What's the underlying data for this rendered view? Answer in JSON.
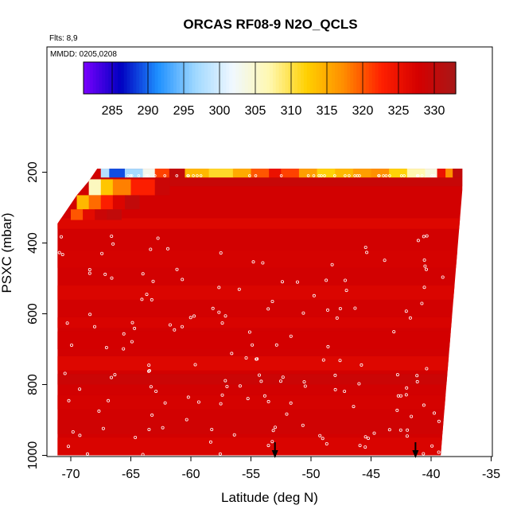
{
  "chart_data": {
    "type": "heatmap",
    "title": "ORCAS RF08-9 N2O_QCLS",
    "flights_note": "Flts: 8,9",
    "date_note": "MMDD: 0205,0208",
    "xlabel": "Latitude (deg N)",
    "ylabel": "PSXC (mbar)",
    "xlim": [
      -72.5,
      -35
    ],
    "ylim": [
      1010,
      80
    ],
    "y_reversed": true,
    "grid": false,
    "x_ticks": [
      -70,
      -65,
      -60,
      -55,
      -50,
      -45,
      -40,
      -35
    ],
    "y_ticks": [
      200,
      400,
      600,
      800,
      1000
    ],
    "colorbar": {
      "placement": "top-inside",
      "range": [
        281,
        333
      ],
      "ticks": [
        285,
        290,
        295,
        300,
        305,
        310,
        315,
        320,
        325,
        330
      ],
      "colors": [
        "#7a00ff",
        "#0000c0",
        "#1e90ff",
        "#9fd8ff",
        "#f0f8ff",
        "#fff8b0",
        "#ffd000",
        "#ff8c00",
        "#ff2000",
        "#d40000",
        "#a81818"
      ]
    },
    "values_summary": {
      "background_level_ppb": 328,
      "layer_level_ppb": 326,
      "stratospheric_band": {
        "pressure_range_mbar": [
          190,
          215
        ],
        "lat": [
          -67.5,
          -66.8,
          -65.5,
          -64.0,
          -63.0,
          -61.8,
          -60.5,
          -58.5,
          -56.5,
          -55.0,
          -53.5,
          -52.5,
          -51.0,
          -49.5,
          -48.0,
          -46.5,
          -45.0,
          -43.5,
          -42.0,
          -40.5,
          -39.5,
          -38.8,
          -38.2
        ],
        "value": [
          298,
          289,
          297,
          303,
          321,
          330,
          314,
          311,
          315,
          320,
          325,
          321,
          316,
          312,
          314,
          316,
          317,
          312,
          307,
          304,
          325,
          317,
          330
        ]
      },
      "upper_layers": [
        {
          "pressure_range_mbar": [
            220,
            265
          ],
          "lat": [
            -68.5,
            -67.5,
            -66.5,
            -65.0,
            -63.0
          ],
          "value": [
            306,
            313,
            318,
            323,
            329
          ]
        },
        {
          "pressure_range_mbar": [
            265,
            305
          ],
          "lat": [
            -69.5,
            -68.5,
            -67.5,
            -66.5,
            -65.5
          ],
          "value": [
            314,
            319,
            323,
            327,
            330
          ]
        },
        {
          "pressure_range_mbar": [
            305,
            335
          ],
          "lat": [
            -70.0,
            -69.0,
            -68.0,
            -67.0
          ],
          "value": [
            320,
            326,
            329,
            330
          ]
        }
      ]
    },
    "arrows": {
      "label": "",
      "lat": [
        -53,
        -41.3
      ]
    }
  }
}
